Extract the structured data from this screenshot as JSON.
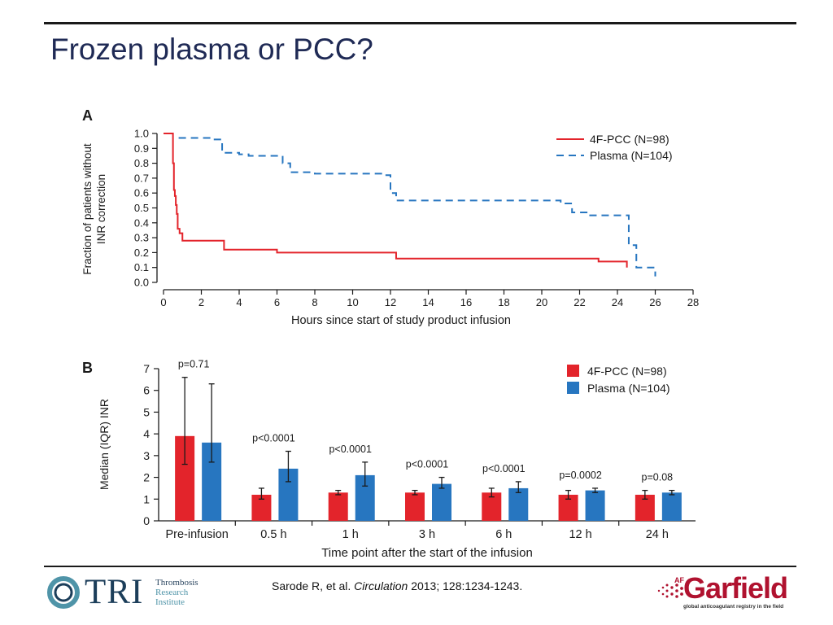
{
  "slide": {
    "title": "Frozen plasma or PCC?",
    "citation": {
      "authors": "Sarode R, et al.",
      "journal": "Circulation",
      "details": "2013; 128:1234-1243."
    },
    "logos": {
      "tri": {
        "wordmark": "TRI",
        "lines": [
          "Thrombosis",
          "Research",
          "Institute"
        ]
      },
      "garfield": {
        "wordmark": "Garfield",
        "prefix": "AF",
        "tagline": "global anticoagulant registry in the field"
      }
    }
  },
  "colors": {
    "pcc": "#e3242b",
    "plasma": "#2776c0",
    "text": "#1a1a1a",
    "title": "#1f2a55",
    "logo_red": "#b0122f",
    "logo_blue": "#1c3e5a"
  },
  "chart_data": [
    {
      "panel": "A",
      "type": "line",
      "ylabel": "Fraction of patients without INR correction",
      "xlabel": "Hours since start of study product infusion",
      "xlim": [
        0,
        28
      ],
      "ylim": [
        0,
        1.0
      ],
      "xticks": [
        "0",
        "2",
        "4",
        "6",
        "8",
        "10",
        "12",
        "14",
        "16",
        "18",
        "20",
        "22",
        "24",
        "26",
        "28"
      ],
      "yticks": [
        "0.0",
        "0.1",
        "0.2",
        "0.3",
        "0.4",
        "0.5",
        "0.6",
        "0.7",
        "0.8",
        "0.9",
        "1.0"
      ],
      "series": [
        {
          "name": "4F-PCC (N=98)",
          "style": "solid",
          "x": [
            0,
            0.45,
            0.5,
            0.55,
            0.6,
            0.65,
            0.7,
            0.75,
            0.85,
            1.0,
            3.0,
            3.2,
            6.0,
            12.0,
            12.3,
            22.0,
            23.0,
            24.5,
            24.5
          ],
          "y": [
            1.0,
            1.0,
            0.8,
            0.62,
            0.58,
            0.52,
            0.46,
            0.36,
            0.33,
            0.28,
            0.28,
            0.22,
            0.2,
            0.2,
            0.16,
            0.16,
            0.14,
            0.12,
            0.1
          ]
        },
        {
          "name": "Plasma (N=104)",
          "style": "dashed",
          "x": [
            0.8,
            1.2,
            2.7,
            3.1,
            4.0,
            4.5,
            6.0,
            6.3,
            6.7,
            8.0,
            11.7,
            12.0,
            12.3,
            21.0,
            21.6,
            22.5,
            24.3,
            24.6,
            25.0,
            26.0
          ],
          "y": [
            0.97,
            0.97,
            0.96,
            0.87,
            0.86,
            0.85,
            0.85,
            0.8,
            0.74,
            0.73,
            0.72,
            0.6,
            0.55,
            0.53,
            0.47,
            0.45,
            0.45,
            0.25,
            0.1,
            0.04
          ]
        }
      ]
    },
    {
      "panel": "B",
      "type": "bar",
      "ylabel": "Median (IQR) INR",
      "xlabel": "Time point after the start of the infusion",
      "ylim": [
        0,
        7
      ],
      "yticks": [
        "0",
        "1",
        "2",
        "3",
        "4",
        "5",
        "6",
        "7"
      ],
      "categories": [
        "Pre-infusion",
        "0.5 h",
        "1 h",
        "3 h",
        "6 h",
        "12 h",
        "24 h"
      ],
      "p_values": [
        "p=0.71",
        "p<0.0001",
        "p<0.0001",
        "p<0.0001",
        "p<0.0001",
        "p=0.0002",
        "p=0.08"
      ],
      "series": [
        {
          "name": "4F-PCC (N=98)",
          "values": [
            3.9,
            1.2,
            1.3,
            1.3,
            1.3,
            1.2,
            1.2
          ],
          "iqr_low": [
            2.6,
            1.0,
            1.2,
            1.2,
            1.1,
            1.0,
            1.0
          ],
          "iqr_high": [
            6.6,
            1.5,
            1.4,
            1.4,
            1.5,
            1.4,
            1.4
          ]
        },
        {
          "name": "Plasma (N=104)",
          "values": [
            3.6,
            2.4,
            2.1,
            1.7,
            1.5,
            1.4,
            1.3
          ],
          "iqr_low": [
            2.7,
            1.8,
            1.6,
            1.5,
            1.3,
            1.3,
            1.2
          ],
          "iqr_high": [
            6.3,
            3.2,
            2.7,
            2.0,
            1.8,
            1.5,
            1.4
          ]
        }
      ]
    }
  ]
}
